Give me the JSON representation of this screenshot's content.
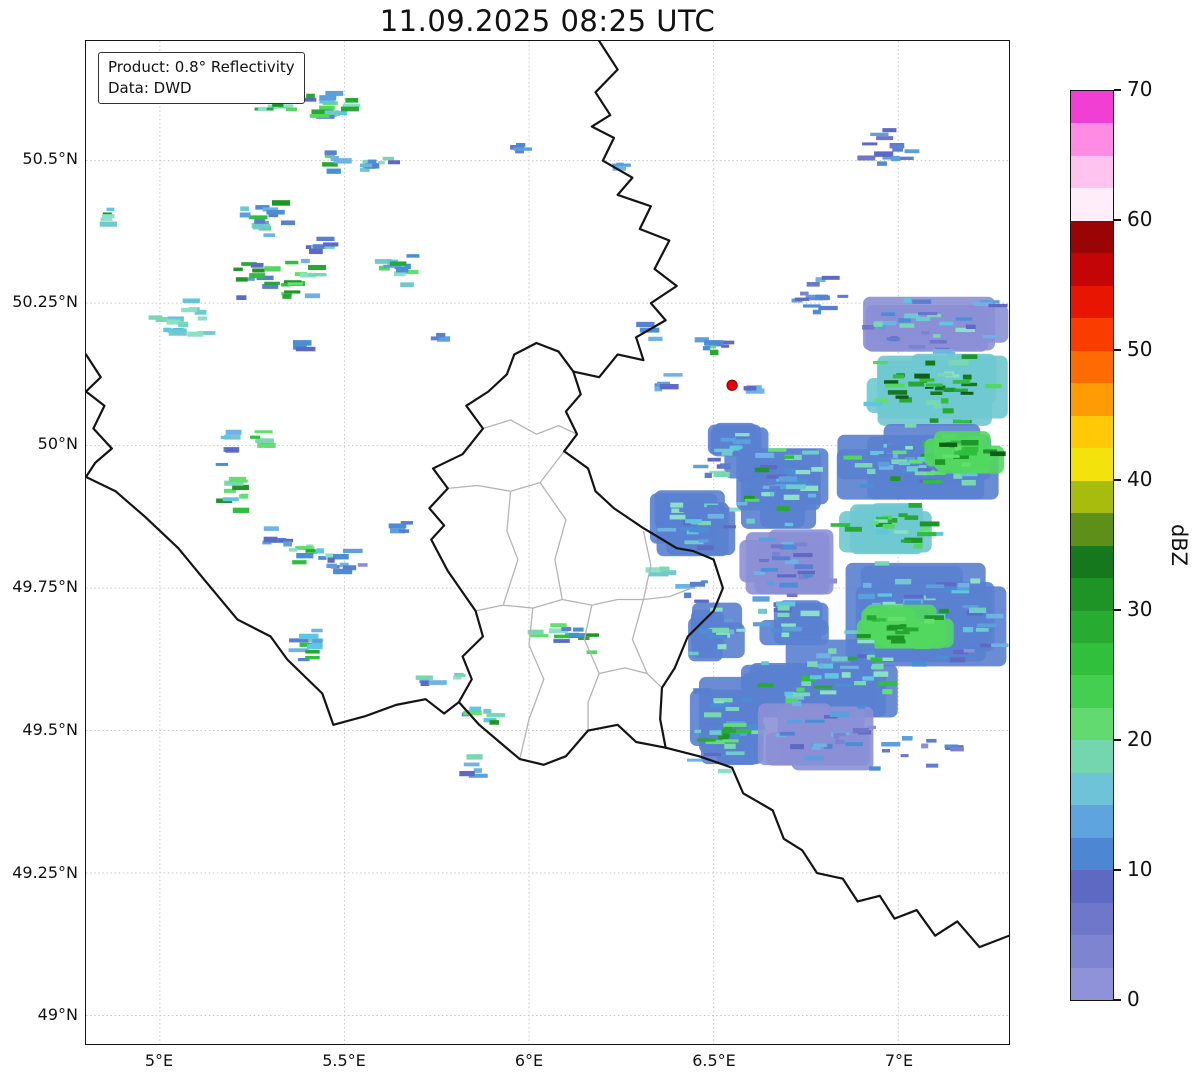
{
  "title": "11.09.2025 08:25 UTC",
  "info_box": {
    "line1": "Product: 0.8° Reflectivity",
    "line2": "Data: DWD"
  },
  "map": {
    "extent": {
      "lon_min": 4.8,
      "lon_max": 7.3,
      "lat_min": 48.95,
      "lat_max": 50.71
    },
    "x_ticks": [
      {
        "lon": 5.0,
        "label": "5°E"
      },
      {
        "lon": 5.5,
        "label": "5.5°E"
      },
      {
        "lon": 6.0,
        "label": "6°E"
      },
      {
        "lon": 6.5,
        "label": "6.5°E"
      },
      {
        "lon": 7.0,
        "label": "7°E"
      }
    ],
    "y_ticks": [
      {
        "lat": 50.5,
        "label": "50.5°N"
      },
      {
        "lat": 50.25,
        "label": "50.25°N"
      },
      {
        "lat": 50.0,
        "label": "50°N"
      },
      {
        "lat": 49.75,
        "label": "49.75°N"
      },
      {
        "lat": 49.5,
        "label": "49.5°N"
      },
      {
        "lat": 49.25,
        "label": "49.25°N"
      },
      {
        "lat": 49.0,
        "label": "49°N"
      }
    ],
    "marker": {
      "lon": 6.55,
      "lat": 50.106,
      "color": "#e8000b"
    },
    "borders": {
      "country": [
        [
          [
            6.19,
            50.71
          ],
          [
            6.24,
            50.66
          ],
          [
            6.18,
            50.62
          ],
          [
            6.22,
            50.58
          ],
          [
            6.17,
            50.56
          ],
          [
            6.23,
            50.54
          ],
          [
            6.2,
            50.5
          ],
          [
            6.28,
            50.47
          ],
          [
            6.24,
            50.44
          ],
          [
            6.33,
            50.42
          ],
          [
            6.3,
            50.38
          ],
          [
            6.38,
            50.36
          ],
          [
            6.34,
            50.31
          ],
          [
            6.4,
            50.28
          ],
          [
            6.33,
            50.25
          ],
          [
            6.37,
            50.22
          ],
          [
            6.29,
            50.19
          ],
          [
            6.31,
            50.15
          ],
          [
            6.24,
            50.16
          ],
          [
            6.19,
            50.12
          ],
          [
            6.12,
            50.13
          ]
        ],
        [
          [
            6.02,
            50.18
          ],
          [
            6.08,
            50.165
          ],
          [
            6.12,
            50.13
          ],
          [
            6.14,
            50.09
          ],
          [
            6.1,
            50.06
          ],
          [
            6.13,
            50.02
          ],
          [
            6.095,
            49.99
          ],
          [
            6.16,
            49.96
          ],
          [
            6.18,
            49.92
          ],
          [
            6.23,
            49.89
          ],
          [
            6.31,
            49.855
          ],
          [
            6.4,
            49.82
          ],
          [
            6.445,
            49.815
          ],
          [
            6.5,
            49.8
          ],
          [
            6.525,
            49.75
          ],
          [
            6.5,
            49.71
          ],
          [
            6.43,
            49.665
          ],
          [
            6.395,
            49.61
          ],
          [
            6.36,
            49.575
          ],
          [
            6.355,
            49.52
          ],
          [
            6.37,
            49.47
          ],
          [
            6.29,
            49.48
          ],
          [
            6.24,
            49.51
          ],
          [
            6.16,
            49.5
          ],
          [
            6.1,
            49.455
          ],
          [
            6.04,
            49.44
          ],
          [
            5.975,
            49.45
          ],
          [
            5.92,
            49.48
          ],
          [
            5.865,
            49.51
          ],
          [
            5.81,
            49.55
          ],
          [
            5.845,
            49.59
          ],
          [
            5.82,
            49.63
          ],
          [
            5.875,
            49.665
          ],
          [
            5.855,
            49.71
          ],
          [
            5.78,
            49.78
          ],
          [
            5.735,
            49.835
          ],
          [
            5.77,
            49.86
          ],
          [
            5.73,
            49.89
          ],
          [
            5.78,
            49.925
          ],
          [
            5.74,
            49.96
          ],
          [
            5.82,
            49.985
          ],
          [
            5.875,
            50.03
          ],
          [
            5.83,
            50.07
          ],
          [
            5.89,
            50.095
          ],
          [
            5.94,
            50.125
          ],
          [
            5.96,
            50.16
          ],
          [
            6.02,
            50.18
          ]
        ],
        [
          [
            6.37,
            49.47
          ],
          [
            6.46,
            49.455
          ],
          [
            6.55,
            49.435
          ],
          [
            6.58,
            49.39
          ],
          [
            6.66,
            49.36
          ],
          [
            6.69,
            49.31
          ],
          [
            6.74,
            49.29
          ],
          [
            6.78,
            49.25
          ],
          [
            6.85,
            49.24
          ],
          [
            6.89,
            49.2
          ],
          [
            6.95,
            49.21
          ],
          [
            6.99,
            49.17
          ],
          [
            7.05,
            49.185
          ],
          [
            7.1,
            49.14
          ],
          [
            7.16,
            49.165
          ],
          [
            7.22,
            49.12
          ],
          [
            7.3,
            49.14
          ]
        ],
        [
          [
            4.8,
            50.16
          ],
          [
            4.84,
            50.12
          ],
          [
            4.8,
            50.095
          ],
          [
            4.85,
            50.07
          ],
          [
            4.82,
            50.03
          ],
          [
            4.87,
            49.995
          ],
          [
            4.825,
            49.97
          ],
          [
            4.8,
            49.945
          ],
          [
            4.88,
            49.92
          ],
          [
            4.96,
            49.875
          ],
          [
            5.05,
            49.82
          ],
          [
            5.12,
            49.765
          ],
          [
            5.21,
            49.695
          ],
          [
            5.3,
            49.665
          ],
          [
            5.345,
            49.625
          ],
          [
            5.44,
            49.565
          ],
          [
            5.47,
            49.51
          ],
          [
            5.555,
            49.525
          ],
          [
            5.64,
            49.545
          ],
          [
            5.72,
            49.555
          ],
          [
            5.77,
            49.53
          ],
          [
            5.81,
            49.55
          ]
        ]
      ],
      "regional": [
        [
          [
            5.875,
            50.03
          ],
          [
            5.95,
            50.045
          ],
          [
            6.02,
            50.02
          ],
          [
            6.08,
            50.035
          ],
          [
            6.13,
            50.02
          ]
        ],
        [
          [
            5.78,
            49.925
          ],
          [
            5.86,
            49.93
          ],
          [
            5.95,
            49.92
          ],
          [
            6.03,
            49.935
          ],
          [
            6.095,
            49.99
          ]
        ],
        [
          [
            5.855,
            49.71
          ],
          [
            5.93,
            49.72
          ],
          [
            6.01,
            49.715
          ],
          [
            6.09,
            49.73
          ],
          [
            6.17,
            49.72
          ],
          [
            6.24,
            49.73
          ],
          [
            6.31,
            49.73
          ],
          [
            6.38,
            49.735
          ],
          [
            6.44,
            49.75
          ]
        ],
        [
          [
            6.31,
            49.85
          ],
          [
            6.33,
            49.79
          ],
          [
            6.31,
            49.73
          ]
        ],
        [
          [
            5.95,
            49.92
          ],
          [
            5.94,
            49.85
          ],
          [
            5.97,
            49.8
          ],
          [
            5.93,
            49.72
          ]
        ],
        [
          [
            6.03,
            49.935
          ],
          [
            6.1,
            49.87
          ],
          [
            6.07,
            49.8
          ],
          [
            6.09,
            49.73
          ]
        ],
        [
          [
            6.17,
            49.72
          ],
          [
            6.15,
            49.66
          ],
          [
            6.19,
            49.6
          ],
          [
            6.16,
            49.55
          ],
          [
            6.16,
            49.5
          ]
        ],
        [
          [
            6.01,
            49.715
          ],
          [
            6.0,
            49.65
          ],
          [
            6.04,
            49.59
          ],
          [
            6.0,
            49.52
          ],
          [
            5.975,
            49.45
          ]
        ],
        [
          [
            6.31,
            49.73
          ],
          [
            6.28,
            49.66
          ],
          [
            6.32,
            49.6
          ],
          [
            6.36,
            49.575
          ]
        ],
        [
          [
            6.19,
            49.6
          ],
          [
            6.26,
            49.61
          ],
          [
            6.32,
            49.6
          ]
        ]
      ]
    }
  },
  "colorbar": {
    "label": "dBZ",
    "min": 0,
    "max": 70,
    "ticks": [
      {
        "value": 0,
        "label": "0"
      },
      {
        "value": 10,
        "label": "10"
      },
      {
        "value": 20,
        "label": "20"
      },
      {
        "value": 30,
        "label": "30"
      },
      {
        "value": 40,
        "label": "40"
      },
      {
        "value": 50,
        "label": "50"
      },
      {
        "value": 60,
        "label": "60"
      },
      {
        "value": 70,
        "label": "70"
      }
    ],
    "colors": [
      "#8f92d8",
      "#7f84d1",
      "#6f77cb",
      "#5e69c4",
      "#4d87d4",
      "#5ea4de",
      "#6fc3d9",
      "#74d6ae",
      "#62da70",
      "#44cf50",
      "#31c03c",
      "#28ab31",
      "#1e9427",
      "#16781d",
      "#5d8f19",
      "#a8bc0e",
      "#f3e20c",
      "#ffc907",
      "#ff9b04",
      "#ff6b02",
      "#fa3c00",
      "#e81600",
      "#c40505",
      "#9b0404",
      "#ffeef9",
      "#ffc3ef",
      "#ff8ce2",
      "#f23fd3"
    ]
  },
  "chart_data": {
    "type": "heatmap",
    "title": "11.09.2025 08:25 UTC",
    "product": "0.8° Reflectivity",
    "data_source": "DWD",
    "units": "dBZ",
    "colorbar_range": [
      0,
      70
    ],
    "x_axis": {
      "tick_labels": [
        "5°E",
        "5.5°E",
        "6°E",
        "6.5°E",
        "7°E"
      ],
      "range_lon": [
        4.8,
        7.3
      ]
    },
    "y_axis": {
      "tick_labels": [
        "49°N",
        "49.25°N",
        "49.5°N",
        "49.75°N",
        "50°N",
        "50.25°N",
        "50.5°N"
      ],
      "range_lat": [
        48.95,
        50.71
      ]
    },
    "radar_site": {
      "lon": 6.55,
      "lat": 50.106
    },
    "intensity_levels": [
      {
        "dbz": "0-5",
        "colors": [
          "#8b90d6",
          "#7b82cf",
          "#6d76c9"
        ]
      },
      {
        "dbz": "5-15",
        "colors": [
          "#5a7fd0",
          "#4b8ed6",
          "#5b9fdd",
          "#6fb2e4",
          "#5e69c4"
        ]
      },
      {
        "dbz": "15-20",
        "colors": [
          "#6fc9cf",
          "#79d7b4",
          "#8ce0c8",
          "#5ec6de"
        ]
      },
      {
        "dbz": "20-30",
        "colors": [
          "#52d75f",
          "#2fbe3e",
          "#28a833",
          "#63df6d",
          "#1d9627"
        ]
      },
      {
        "dbz": "30-35",
        "colors": [
          "#16781d",
          "#115c16"
        ]
      }
    ],
    "region_format": [
      "lon_min",
      "lat_top",
      "width_deg",
      "height_deg",
      "intensity_level_mix",
      "speckle_count",
      "density(s=sparse,d=dense)"
    ],
    "echo_regions": [
      [
        5.259,
        50.649,
        0.122,
        0.079,
        "233",
        16,
        "s"
      ],
      [
        5.381,
        50.631,
        0.149,
        0.07,
        "1233",
        18,
        "s"
      ],
      [
        5.435,
        50.521,
        0.068,
        0.042,
        "13",
        7,
        "s"
      ],
      [
        5.538,
        50.526,
        0.108,
        0.053,
        "12",
        9,
        "s"
      ],
      [
        5.954,
        50.538,
        0.038,
        0.039,
        "1",
        4,
        "s"
      ],
      [
        4.838,
        50.43,
        0.038,
        0.056,
        "23",
        5,
        "s"
      ],
      [
        5.214,
        50.444,
        0.146,
        0.088,
        "123",
        16,
        "s"
      ],
      [
        5.408,
        50.367,
        0.086,
        0.039,
        "12",
        7,
        "s"
      ],
      [
        5.151,
        50.332,
        0.316,
        0.081,
        "1233",
        26,
        "s"
      ],
      [
        5.592,
        50.349,
        0.13,
        0.07,
        "123",
        12,
        "s"
      ],
      [
        4.962,
        50.265,
        0.192,
        0.082,
        "122",
        16,
        "s"
      ],
      [
        5.365,
        50.192,
        0.049,
        0.035,
        "1",
        4,
        "s"
      ],
      [
        5.738,
        50.206,
        0.038,
        0.025,
        "1",
        3,
        "s"
      ],
      [
        6.235,
        50.51,
        0.043,
        0.032,
        "1",
        3,
        "s"
      ],
      [
        6.889,
        50.559,
        0.184,
        0.077,
        "011",
        14,
        "s"
      ],
      [
        5.165,
        50.038,
        0.054,
        0.074,
        "12",
        6,
        "s"
      ],
      [
        5.246,
        50.034,
        0.097,
        0.042,
        "23",
        6,
        "s"
      ],
      [
        5.146,
        49.96,
        0.105,
        0.095,
        "123",
        10,
        "s"
      ],
      [
        5.273,
        49.873,
        0.086,
        0.049,
        "1",
        5,
        "s"
      ],
      [
        5.322,
        49.838,
        0.151,
        0.053,
        "123",
        12,
        "s"
      ],
      [
        5.43,
        49.82,
        0.13,
        0.06,
        "011",
        10,
        "s"
      ],
      [
        5.619,
        49.873,
        0.065,
        0.032,
        "1",
        4,
        "s"
      ],
      [
        5.349,
        49.68,
        0.135,
        0.081,
        "123",
        12,
        "s"
      ],
      [
        5.7,
        49.607,
        0.065,
        0.035,
        "12",
        4,
        "s"
      ],
      [
        5.776,
        49.61,
        0.07,
        0.028,
        "2",
        3,
        "s"
      ],
      [
        5.792,
        49.561,
        0.141,
        0.049,
        "123",
        8,
        "s"
      ],
      [
        5.808,
        49.463,
        0.081,
        0.046,
        "12",
        5,
        "s"
      ],
      [
        5.997,
        49.694,
        0.189,
        0.06,
        "1233",
        14,
        "s"
      ],
      [
        6.327,
        49.799,
        0.065,
        0.042,
        "2",
        4,
        "s"
      ],
      [
        6.295,
        50.216,
        0.065,
        0.035,
        "1",
        3,
        "s"
      ],
      [
        6.332,
        50.132,
        0.081,
        0.049,
        "1",
        5,
        "s"
      ],
      [
        6.43,
        50.206,
        0.146,
        0.06,
        "113",
        8,
        "s"
      ],
      [
        6.581,
        50.122,
        0.049,
        0.032,
        "1",
        3,
        "s"
      ],
      [
        6.722,
        50.318,
        0.141,
        0.119,
        "011",
        14,
        "s"
      ],
      [
        6.889,
        50.269,
        0.416,
        0.119,
        "0112",
        34,
        "d"
      ],
      [
        6.9,
        50.164,
        0.405,
        0.133,
        "2334",
        40,
        "d"
      ],
      [
        6.451,
        50.041,
        0.205,
        0.105,
        "112",
        20,
        "d"
      ],
      [
        6.322,
        49.929,
        0.238,
        0.14,
        "12",
        22,
        "d"
      ],
      [
        6.554,
        50.017,
        0.265,
        0.168,
        "123",
        30,
        "d"
      ],
      [
        6.814,
        50.048,
        0.492,
        0.144,
        "1223",
        44,
        "d"
      ],
      [
        7.051,
        50.027,
        0.238,
        0.077,
        "334",
        18,
        "d"
      ],
      [
        6.835,
        49.905,
        0.281,
        0.098,
        "233",
        22,
        "d"
      ],
      [
        6.814,
        49.806,
        0.492,
        0.196,
        "112",
        46,
        "d"
      ],
      [
        6.884,
        49.722,
        0.27,
        0.084,
        "33",
        16,
        "d"
      ],
      [
        6.559,
        49.856,
        0.27,
        0.137,
        "011",
        24,
        "d"
      ],
      [
        6.565,
        49.666,
        0.476,
        0.151,
        "1223",
        38,
        "d"
      ],
      [
        6.424,
        49.596,
        0.211,
        0.168,
        "112",
        24,
        "d"
      ],
      [
        6.451,
        49.533,
        0.162,
        0.063,
        "33",
        10,
        "s"
      ],
      [
        6.619,
        49.558,
        0.341,
        0.13,
        "011",
        26,
        "d"
      ],
      [
        6.965,
        49.498,
        0.211,
        0.07,
        "01",
        10,
        "s"
      ],
      [
        7.1,
        49.666,
        0.184,
        0.056,
        "01",
        6,
        "s"
      ],
      [
        6.419,
        49.806,
        0.081,
        0.084,
        "1",
        5,
        "s"
      ],
      [
        6.43,
        49.733,
        0.162,
        0.112,
        "12",
        12,
        "d"
      ],
      [
        6.592,
        49.736,
        0.227,
        0.091,
        "12",
        12,
        "d"
      ]
    ]
  }
}
